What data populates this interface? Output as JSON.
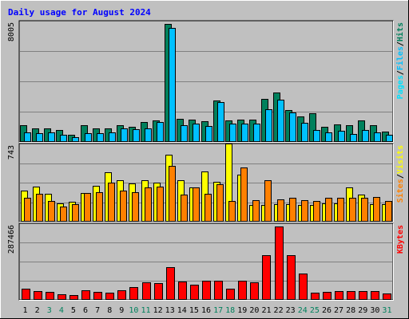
{
  "title": "Daily usage for August 2024",
  "colors": {
    "background": "#c0c0c0",
    "plot": "#c0c0c0",
    "title": "#0000ff",
    "hits": "#00805c",
    "files": "#00c0ff",
    "pages": "#00e0ff",
    "visits": "#ffff00",
    "sites": "#ff8000",
    "kbytes": "#ff0000",
    "weekend_label": "#00805c",
    "weekday_label": "#000000"
  },
  "chart_data": [
    {
      "type": "bar",
      "name": "hits-files-pages",
      "axis_max_label": "8005",
      "ylim": [
        0,
        8005
      ],
      "legend": [
        "Pages",
        "/",
        "Files",
        "/",
        "Hits"
      ],
      "series": [
        {
          "name": "Hits",
          "values": [
            1120,
            920,
            900,
            780,
            480,
            1120,
            890,
            900,
            1140,
            1030,
            1340,
            1460,
            7900,
            1560,
            1500,
            1370,
            2800,
            1420,
            1480,
            1480,
            2880,
            3310,
            2140,
            1730,
            1900,
            1000,
            1170,
            1140,
            1420,
            1110,
            720
          ]
        },
        {
          "name": "Files",
          "values": [
            640,
            570,
            640,
            470,
            310,
            610,
            570,
            640,
            900,
            860,
            900,
            1360,
            7610,
            1120,
            1240,
            1060,
            2650,
            1250,
            1230,
            1210,
            2180,
            2840,
            1990,
            1270,
            790,
            620,
            740,
            540,
            810,
            640,
            480
          ]
        }
      ]
    },
    {
      "type": "bar",
      "name": "visits-sites",
      "axis_max_label": "743",
      "ylim": [
        0,
        743
      ],
      "legend": [
        "Sites",
        "/",
        "Visits"
      ],
      "series": [
        {
          "name": "Visits",
          "values": [
            300,
            340,
            270,
            180,
            190,
            280,
            350,
            480,
            400,
            370,
            400,
            380,
            650,
            400,
            330,
            490,
            390,
            760,
            460,
            160,
            160,
            170,
            170,
            160,
            160,
            180,
            180,
            330,
            260,
            170,
            170
          ]
        },
        {
          "name": "Sites",
          "values": [
            230,
            270,
            200,
            150,
            170,
            280,
            290,
            380,
            300,
            290,
            330,
            340,
            540,
            260,
            330,
            270,
            360,
            200,
            530,
            210,
            400,
            220,
            230,
            210,
            200,
            230,
            230,
            230,
            230,
            240,
            200
          ]
        }
      ]
    },
    {
      "type": "bar",
      "name": "kbytes",
      "axis_max_label": "287466",
      "ylim": [
        0,
        287466
      ],
      "legend": [
        "KBytes"
      ],
      "series": [
        {
          "name": "KBytes",
          "values": [
            43000,
            33000,
            30000,
            22000,
            18000,
            36000,
            30000,
            28000,
            36000,
            50000,
            66000,
            65000,
            126000,
            69000,
            59000,
            73000,
            73000,
            43000,
            73000,
            66000,
            170000,
            280000,
            172000,
            102000,
            29000,
            30000,
            33000,
            35000,
            35000,
            35000,
            25000
          ]
        }
      ]
    }
  ],
  "x_labels": [
    "1",
    "2",
    "3",
    "4",
    "5",
    "6",
    "7",
    "8",
    "9",
    "10",
    "11",
    "12",
    "13",
    "14",
    "15",
    "16",
    "17",
    "18",
    "19",
    "20",
    "21",
    "22",
    "23",
    "24",
    "25",
    "26",
    "27",
    "28",
    "29",
    "30",
    "31"
  ],
  "weekend_days": [
    3,
    4,
    10,
    11,
    17,
    18,
    24,
    25,
    31
  ]
}
